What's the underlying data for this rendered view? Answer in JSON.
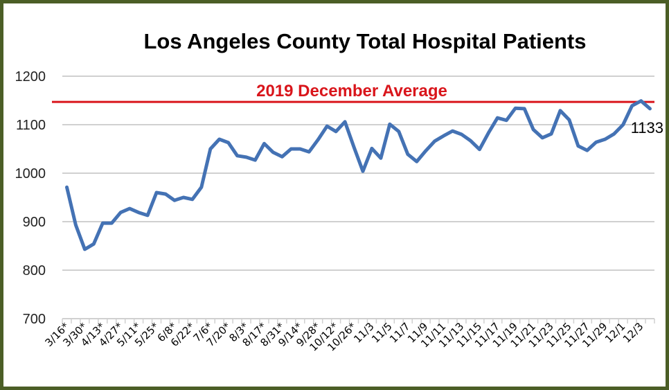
{
  "chart_data": {
    "type": "line",
    "title": "Los Angeles County Total Hospital Patients",
    "xlabel": "",
    "ylabel": "",
    "ylim": [
      700,
      1200
    ],
    "yticks": [
      700,
      800,
      900,
      1000,
      1100,
      1200
    ],
    "grid": true,
    "x_tick_labels": [
      "3/16*",
      "3/30*",
      "4/13*",
      "4/27*",
      "5/11*",
      "5/25*",
      "6/8*",
      "6/22*",
      "7/6*",
      "7/20*",
      "8/3*",
      "8/17*",
      "8/31*",
      "9/14*",
      "9/28*",
      "10/12*",
      "10/26*",
      "11/3",
      "11/5",
      "11/7",
      "11/9",
      "11/11",
      "11/13",
      "11/15",
      "11/17",
      "11/19",
      "11/21",
      "11/23",
      "11/25",
      "11/27",
      "11/29",
      "12/1",
      "12/3"
    ],
    "series": [
      {
        "color": "#4472b4",
        "values": [
          971,
          893,
          843,
          854,
          897,
          897,
          919,
          927,
          919,
          913,
          960,
          957,
          944,
          950,
          946,
          971,
          1050,
          1070,
          1063,
          1036,
          1033,
          1027,
          1061,
          1043,
          1034,
          1050,
          1050,
          1044,
          1069,
          1097,
          1086,
          1106,
          1054,
          1004,
          1051,
          1031,
          1101,
          1086,
          1039,
          1024,
          1046,
          1066,
          1077,
          1087,
          1080,
          1067,
          1049,
          1083,
          1114,
          1109,
          1134,
          1133,
          1090,
          1073,
          1081,
          1129,
          1110,
          1056,
          1047,
          1064,
          1070,
          1081,
          1100,
          1139,
          1149,
          1133
        ]
      }
    ],
    "reference_line": {
      "label": "2019 December Average",
      "value": 1147,
      "color": "#d9151b"
    },
    "last_value_label": "1133"
  }
}
